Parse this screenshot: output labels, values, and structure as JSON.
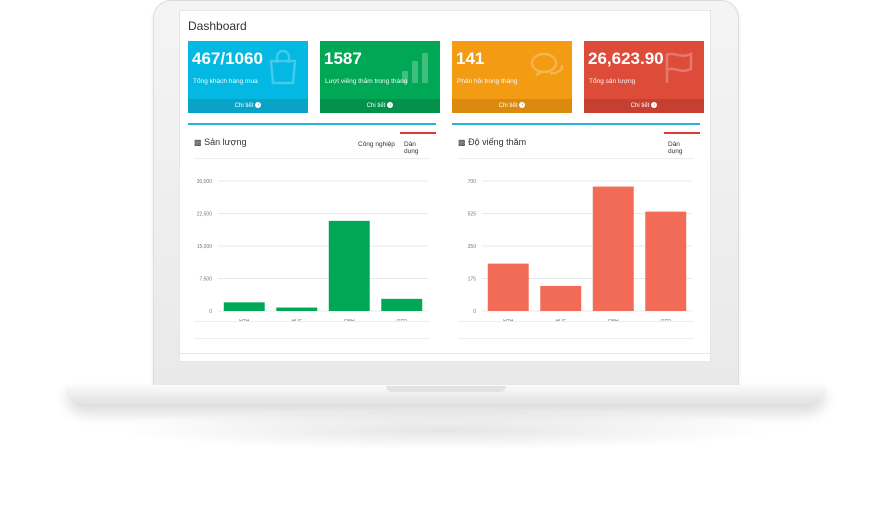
{
  "header": {
    "title": "Dashboard"
  },
  "tiles": [
    {
      "value": "467/1060",
      "label": "Tổng khách hàng mua",
      "footer": "Chi tiết",
      "color": "#03b8e2",
      "footer_color": "#0aa3c8",
      "icon": "shopping-bag-icon"
    },
    {
      "value": "1587",
      "label": "Lượt viếng thăm trong tháng",
      "footer": "Chi tiết",
      "color": "#00a855",
      "footer_color": "#03914b",
      "icon": "bar-chart-icon"
    },
    {
      "value": "141",
      "label": "Phản hồi trong tháng",
      "footer": "Chi tiết",
      "color": "#f39b12",
      "footer_color": "#d98a0f",
      "icon": "comments-icon"
    },
    {
      "value": "26,623.90",
      "label": "Tổng sản lượng",
      "footer": "Chi tiết",
      "color": "#dd4b39",
      "footer_color": "#c54030",
      "icon": "flag-icon"
    }
  ],
  "panels": [
    {
      "title": "Sản lượng",
      "icon": "inbox-icon",
      "tabs": [
        "Công nghiệp",
        "Dân dụng"
      ],
      "active_tab": "Dân dụng"
    },
    {
      "title": "Độ viếng thăm",
      "icon": "inbox-icon",
      "tabs": [
        "Dân dụng"
      ],
      "active_tab": "Dân dụng"
    }
  ],
  "chart_data": [
    {
      "type": "bar",
      "categories": [
        "HTH",
        "HUE",
        "QBH",
        "QTR"
      ],
      "values": [
        2000,
        800,
        20800,
        2800
      ],
      "yticks": [
        "0",
        "7,500",
        "15,000",
        "22,500",
        "30,000"
      ],
      "ylim": [
        0,
        30000
      ],
      "color": "#00a855",
      "grid": true
    },
    {
      "type": "bar",
      "categories": [
        "HTH",
        "HUE",
        "QBH",
        "QTR"
      ],
      "values": [
        255,
        135,
        670,
        535
      ],
      "yticks": [
        "0",
        "175",
        "350",
        "525",
        "700"
      ],
      "ylim": [
        0,
        700
      ],
      "color": "#f26b56",
      "grid": true
    }
  ]
}
